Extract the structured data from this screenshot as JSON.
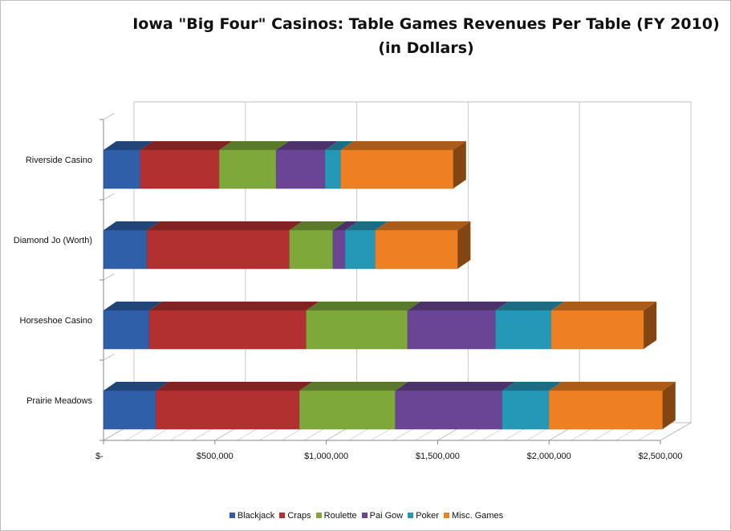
{
  "chart_data": {
    "type": "bar",
    "orientation": "horizontal",
    "stacked": true,
    "style": "3d",
    "title": "Iowa \"Big Four\" Casinos:  Table Games Revenues Per Table (FY 2010)",
    "subtitle": "(in Dollars)",
    "categories": [
      "Riverside Casino",
      "Diamond Jo (Worth)",
      "Horseshoe Casino",
      "Prairie Meadows"
    ],
    "series": [
      {
        "name": "Blackjack",
        "color": "#2e5fa8",
        "values": [
          165000,
          195000,
          205000,
          235000
        ]
      },
      {
        "name": "Craps",
        "color": "#b33030",
        "values": [
          355000,
          640000,
          705000,
          645000
        ]
      },
      {
        "name": "Roulette",
        "color": "#7fa83a",
        "values": [
          255000,
          195000,
          455000,
          430000
        ]
      },
      {
        "name": "Pai Gow",
        "color": "#6a4595",
        "values": [
          220000,
          55000,
          395000,
          480000
        ]
      },
      {
        "name": "Poker",
        "color": "#2597b7",
        "values": [
          70000,
          135000,
          250000,
          210000
        ]
      },
      {
        "name": "Misc. Games",
        "color": "#ee8023",
        "values": [
          505000,
          370000,
          415000,
          510000
        ]
      }
    ],
    "xlim": [
      0,
      2500000
    ],
    "x_ticks": [
      0,
      500000,
      1000000,
      1500000,
      2000000,
      2500000
    ],
    "x_tick_labels": [
      "$-",
      "$500,000",
      "$1,000,000",
      "$1,500,000",
      "$2,000,000",
      "$2,500,000"
    ],
    "grid": true,
    "legend_position": "bottom"
  }
}
